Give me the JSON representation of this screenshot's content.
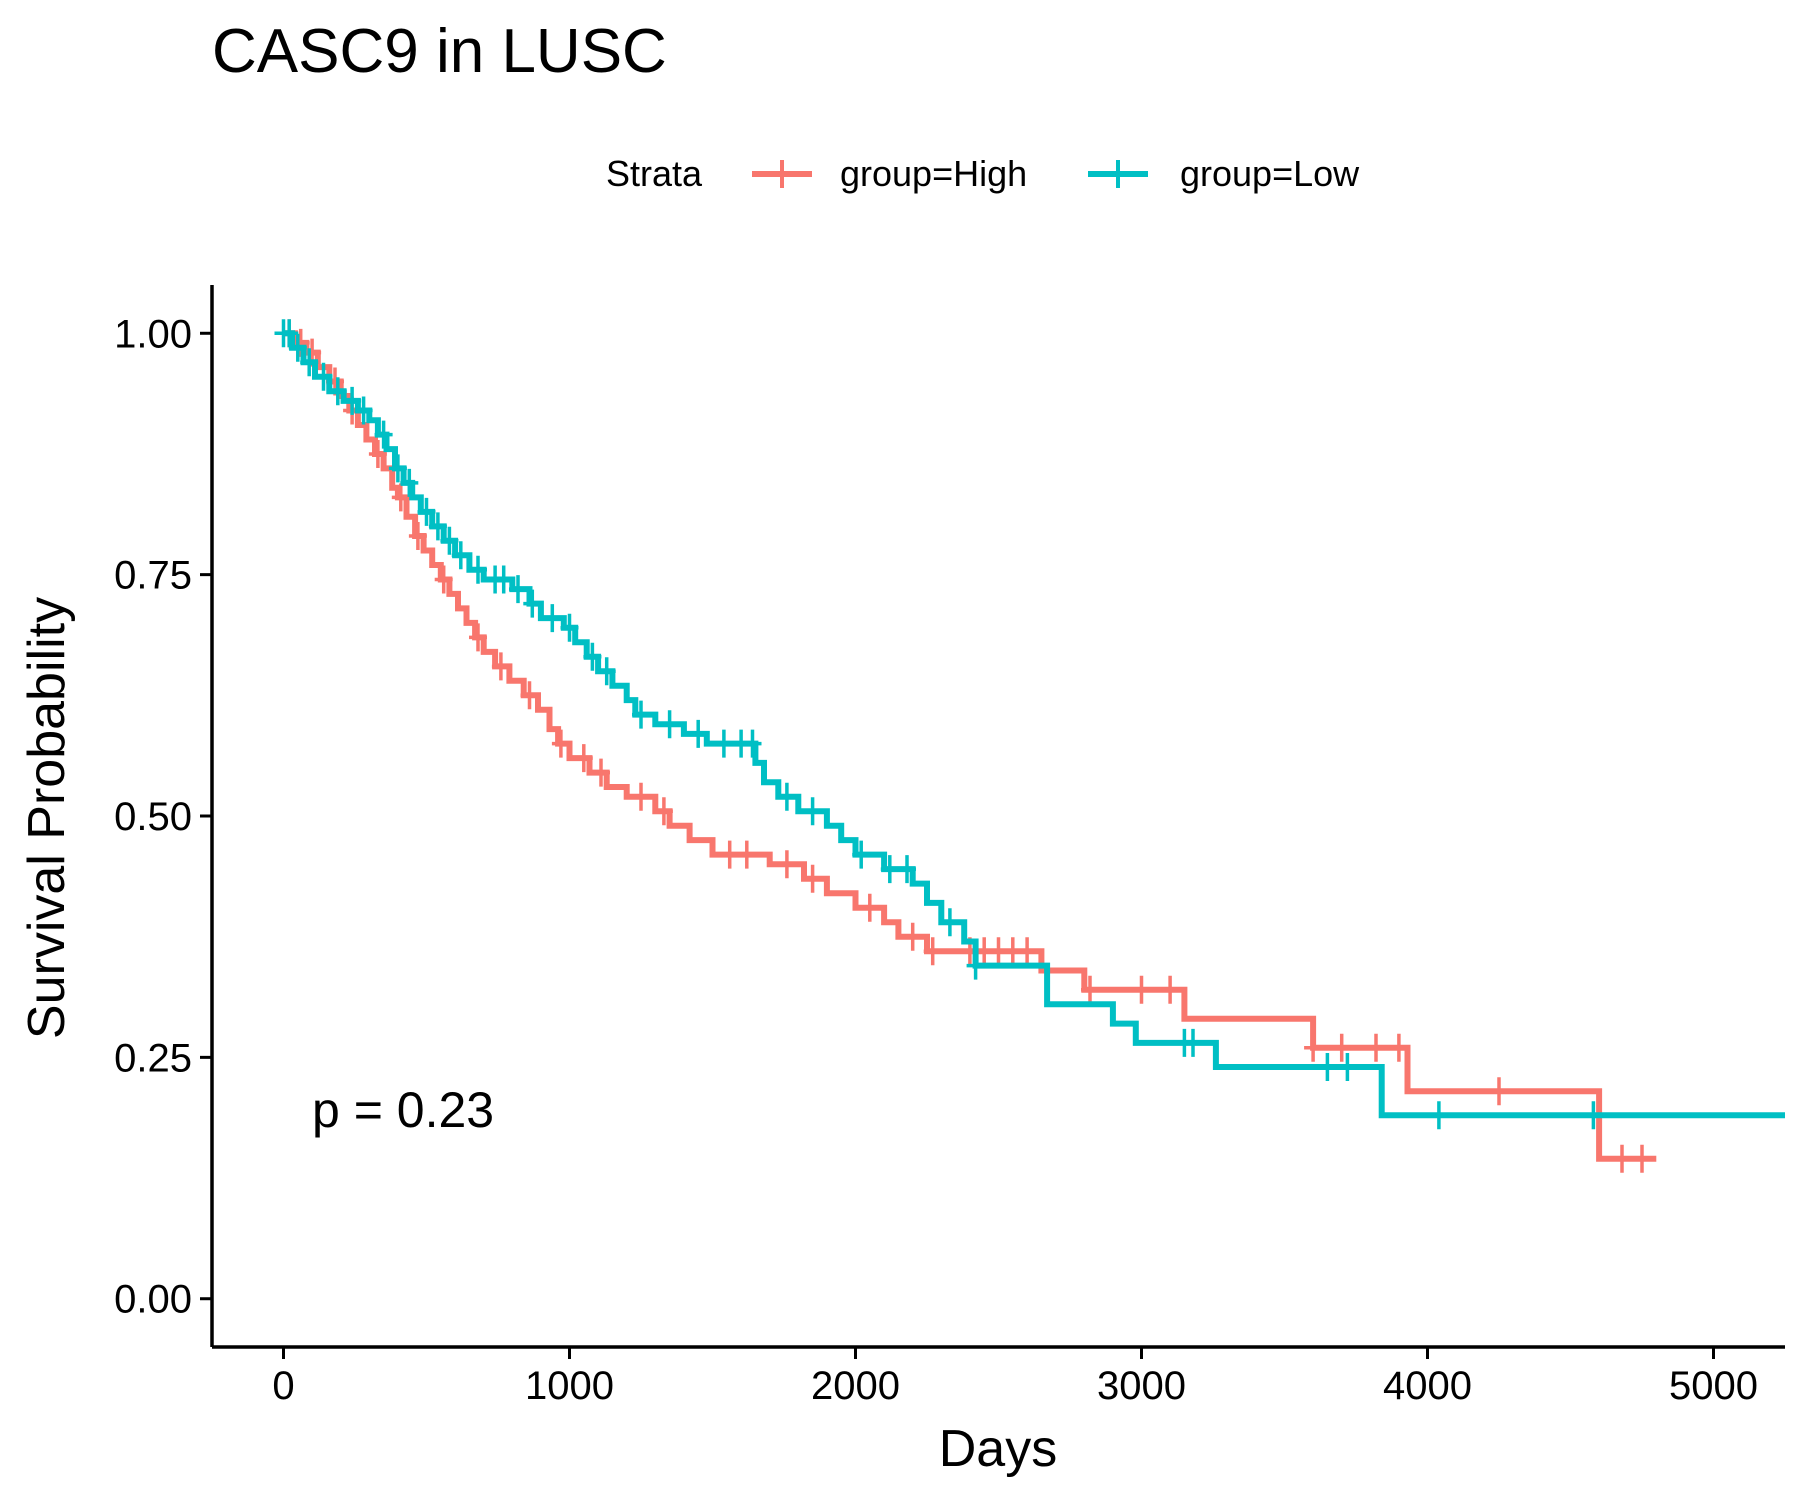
{
  "chart_data": {
    "type": "line",
    "title": "CASC9 in LUSC",
    "xlabel": "Days",
    "ylabel": "Survival Probability",
    "xlim": [
      -250,
      5250
    ],
    "ylim": [
      -0.05,
      1.05
    ],
    "xticks": [
      0,
      1000,
      2000,
      3000,
      4000,
      5000
    ],
    "xtick_labels": [
      "0",
      "1000",
      "2000",
      "3000",
      "4000",
      "5000"
    ],
    "yticks": [
      0,
      0.25,
      0.5,
      0.75,
      1.0
    ],
    "ytick_labels": [
      "0.00",
      "0.25",
      "0.50",
      "0.75",
      "1.00"
    ],
    "legend": {
      "title": "Strata",
      "placement": "top",
      "entries": [
        "group=High",
        "group=Low"
      ]
    },
    "annotation": "p = 0.23",
    "grid": false,
    "series": [
      {
        "name": "group=High",
        "color": "#F8766D",
        "steps": [
          [
            0,
            1.0
          ],
          [
            40,
            0.99
          ],
          [
            80,
            0.98
          ],
          [
            120,
            0.965
          ],
          [
            160,
            0.95
          ],
          [
            200,
            0.935
          ],
          [
            230,
            0.92
          ],
          [
            260,
            0.905
          ],
          [
            290,
            0.89
          ],
          [
            320,
            0.875
          ],
          [
            350,
            0.86
          ],
          [
            380,
            0.84
          ],
          [
            400,
            0.83
          ],
          [
            430,
            0.81
          ],
          [
            460,
            0.79
          ],
          [
            490,
            0.775
          ],
          [
            520,
            0.76
          ],
          [
            550,
            0.745
          ],
          [
            580,
            0.73
          ],
          [
            610,
            0.715
          ],
          [
            640,
            0.7
          ],
          [
            670,
            0.685
          ],
          [
            700,
            0.67
          ],
          [
            740,
            0.655
          ],
          [
            790,
            0.64
          ],
          [
            840,
            0.625
          ],
          [
            890,
            0.61
          ],
          [
            930,
            0.59
          ],
          [
            960,
            0.575
          ],
          [
            1000,
            0.56
          ],
          [
            1070,
            0.545
          ],
          [
            1130,
            0.53
          ],
          [
            1200,
            0.52
          ],
          [
            1300,
            0.505
          ],
          [
            1350,
            0.49
          ],
          [
            1420,
            0.475
          ],
          [
            1500,
            0.46
          ],
          [
            1700,
            0.45
          ],
          [
            1820,
            0.435
          ],
          [
            1900,
            0.42
          ],
          [
            2000,
            0.405
          ],
          [
            2100,
            0.39
          ],
          [
            2150,
            0.375
          ],
          [
            2250,
            0.36
          ],
          [
            2650,
            0.34
          ],
          [
            2800,
            0.32
          ],
          [
            3150,
            0.29
          ],
          [
            3600,
            0.26
          ],
          [
            3930,
            0.215
          ],
          [
            4600,
            0.145
          ],
          [
            4800,
            0.145
          ]
        ],
        "censor_x": [
          20,
          60,
          100,
          180,
          240,
          330,
          410,
          470,
          560,
          680,
          760,
          860,
          970,
          1050,
          1110,
          1250,
          1330,
          1560,
          1620,
          1760,
          1850,
          2050,
          2200,
          2270,
          2400,
          2450,
          2500,
          2550,
          2600,
          2820,
          3000,
          3100,
          3600,
          3700,
          3820,
          3900,
          4250,
          4680,
          4750
        ]
      },
      {
        "name": "group=Low",
        "color": "#00BFC4",
        "steps": [
          [
            0,
            1.0
          ],
          [
            30,
            0.985
          ],
          [
            70,
            0.97
          ],
          [
            110,
            0.955
          ],
          [
            160,
            0.94
          ],
          [
            210,
            0.93
          ],
          [
            260,
            0.92
          ],
          [
            300,
            0.91
          ],
          [
            330,
            0.895
          ],
          [
            360,
            0.88
          ],
          [
            390,
            0.86
          ],
          [
            420,
            0.845
          ],
          [
            450,
            0.83
          ],
          [
            480,
            0.815
          ],
          [
            520,
            0.8
          ],
          [
            560,
            0.785
          ],
          [
            600,
            0.77
          ],
          [
            650,
            0.755
          ],
          [
            700,
            0.745
          ],
          [
            800,
            0.735
          ],
          [
            860,
            0.72
          ],
          [
            900,
            0.705
          ],
          [
            980,
            0.695
          ],
          [
            1020,
            0.68
          ],
          [
            1060,
            0.665
          ],
          [
            1100,
            0.65
          ],
          [
            1150,
            0.635
          ],
          [
            1200,
            0.62
          ],
          [
            1230,
            0.605
          ],
          [
            1300,
            0.595
          ],
          [
            1400,
            0.585
          ],
          [
            1480,
            0.575
          ],
          [
            1650,
            0.555
          ],
          [
            1680,
            0.535
          ],
          [
            1730,
            0.52
          ],
          [
            1800,
            0.505
          ],
          [
            1900,
            0.49
          ],
          [
            1950,
            0.475
          ],
          [
            2000,
            0.46
          ],
          [
            2100,
            0.445
          ],
          [
            2200,
            0.43
          ],
          [
            2250,
            0.41
          ],
          [
            2300,
            0.39
          ],
          [
            2380,
            0.37
          ],
          [
            2420,
            0.345
          ],
          [
            2670,
            0.305
          ],
          [
            2900,
            0.285
          ],
          [
            2980,
            0.265
          ],
          [
            3260,
            0.24
          ],
          [
            3840,
            0.19
          ],
          [
            5250,
            0.19
          ]
        ],
        "censor_x": [
          0,
          20,
          50,
          90,
          140,
          190,
          240,
          280,
          350,
          400,
          440,
          500,
          540,
          580,
          620,
          680,
          740,
          770,
          820,
          870,
          940,
          1000,
          1080,
          1130,
          1250,
          1350,
          1450,
          1540,
          1600,
          1640,
          1760,
          1850,
          2020,
          2120,
          2180,
          2330,
          2420,
          3150,
          3180,
          3650,
          3720,
          4040,
          4580
        ]
      }
    ]
  }
}
